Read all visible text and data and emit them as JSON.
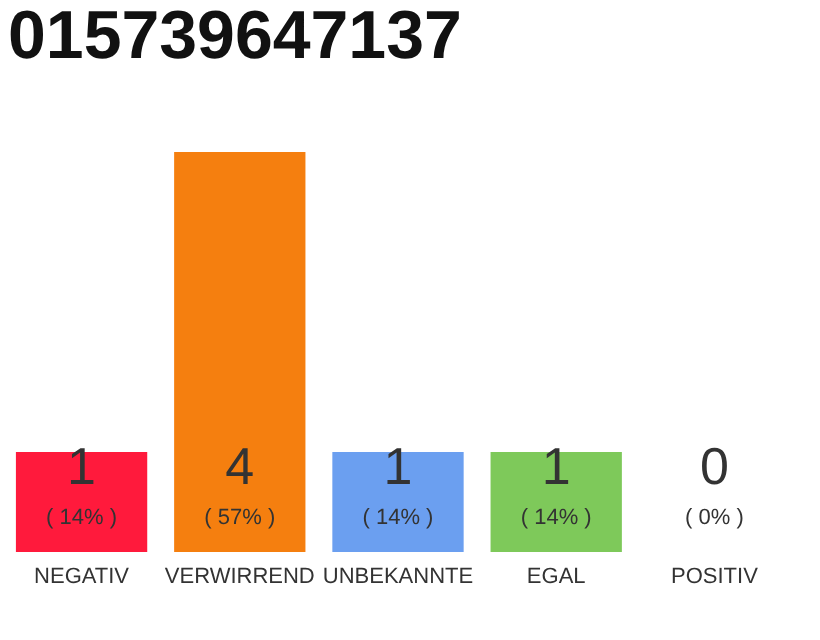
{
  "chart_data": {
    "type": "bar",
    "title": "015739647137",
    "categories": [
      "NEGATIV",
      "VERWIRREND",
      "UNBEKANNTE",
      "EGAL",
      "POSITIV"
    ],
    "values": [
      1,
      4,
      1,
      1,
      0
    ],
    "colors": [
      "#ff1a3c",
      "#f57f0f",
      "#6b9ff0",
      "#7ec95a",
      "#d9d9d9"
    ],
    "data_labels": true,
    "annotations": [
      "( 14% )",
      "( 57% )",
      "( 14% )",
      "( 14% )",
      "( 0% )"
    ]
  }
}
